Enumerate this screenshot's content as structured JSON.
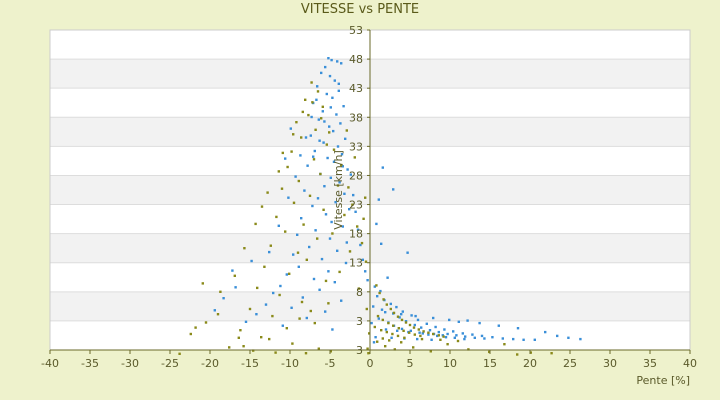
{
  "chart_data": {
    "type": "scatter",
    "title": "VITESSE vs PENTE",
    "xlabel": "Pente [%]",
    "ylabel": "Vitesse [km/h]",
    "xlim": [
      -40,
      40
    ],
    "ylim": [
      3,
      53
    ],
    "x_ticks": [
      -40,
      -35,
      -30,
      -25,
      -20,
      -15,
      -10,
      -5,
      0,
      5,
      10,
      15,
      20,
      25,
      30,
      35,
      40
    ],
    "y_tick_labels": [
      "53",
      "48",
      "43",
      "38",
      "33",
      "28",
      "23",
      "18",
      "13",
      "8",
      "3",
      "3"
    ],
    "grid": "horizontal bands",
    "series": [
      {
        "color": "#3a8fd8",
        "points": [
          [
            -5.2,
            48.6
          ],
          [
            -4.8,
            48.3
          ],
          [
            -4.1,
            48.1
          ],
          [
            -3.6,
            47.8
          ],
          [
            -5.6,
            47.2
          ],
          [
            -6.1,
            46.3
          ],
          [
            -5.0,
            45.8
          ],
          [
            -4.4,
            45.1
          ],
          [
            -6.6,
            44.2
          ],
          [
            -3.9,
            43.5
          ],
          [
            -5.4,
            43.0
          ],
          [
            -4.7,
            42.4
          ],
          [
            -7.1,
            41.6
          ],
          [
            -3.3,
            41.1
          ],
          [
            -5.9,
            40.3
          ],
          [
            -4.2,
            39.8
          ],
          [
            -6.4,
            39.0
          ],
          [
            -3.7,
            38.4
          ],
          [
            -5.1,
            37.9
          ],
          [
            -4.6,
            37.2
          ],
          [
            -7.4,
            36.5
          ],
          [
            -3.1,
            36.0
          ],
          [
            -5.8,
            35.4
          ],
          [
            -4.0,
            34.8
          ],
          [
            -6.9,
            34.1
          ],
          [
            -3.5,
            33.6
          ],
          [
            -5.3,
            33.0
          ],
          [
            -4.5,
            32.4
          ],
          [
            -7.8,
            31.8
          ],
          [
            -2.8,
            31.2
          ],
          [
            -6.2,
            30.5
          ],
          [
            -4.9,
            29.9
          ],
          [
            -3.8,
            29.2
          ],
          [
            -5.7,
            28.6
          ],
          [
            -8.2,
            27.9
          ],
          [
            -3.2,
            27.4
          ],
          [
            -6.5,
            26.7
          ],
          [
            -4.3,
            26.1
          ],
          [
            -7.2,
            25.5
          ],
          [
            -2.6,
            25.0
          ],
          [
            -5.5,
            24.2
          ],
          [
            -8.6,
            23.6
          ],
          [
            -4.8,
            23.0
          ],
          [
            -3.4,
            22.3
          ],
          [
            -6.8,
            21.7
          ],
          [
            -9.1,
            21.0
          ],
          [
            -5.0,
            20.4
          ],
          [
            -2.9,
            19.8
          ],
          [
            -7.6,
            19.1
          ],
          [
            -4.1,
            18.5
          ],
          [
            -9.6,
            17.9
          ],
          [
            -6.0,
            17.2
          ],
          [
            -3.0,
            16.6
          ],
          [
            -8.9,
            16.0
          ],
          [
            -5.2,
            15.3
          ],
          [
            -10.4,
            14.8
          ],
          [
            -7.0,
            14.1
          ],
          [
            -4.4,
            13.6
          ],
          [
            -11.2,
            13.0
          ],
          [
            -6.3,
            12.4
          ],
          [
            -12.1,
            11.9
          ],
          [
            -8.4,
            11.2
          ],
          [
            -3.6,
            10.7
          ],
          [
            -13.0,
            10.1
          ],
          [
            -9.8,
            9.6
          ],
          [
            -5.6,
            9.0
          ],
          [
            -14.2,
            8.6
          ],
          [
            -7.9,
            8.0
          ],
          [
            -15.5,
            7.4
          ],
          [
            -10.9,
            6.8
          ],
          [
            -4.7,
            6.2
          ],
          [
            -16.8,
            12.8
          ],
          [
            -18.3,
            11.1
          ],
          [
            -17.2,
            15.4
          ],
          [
            -19.4,
            9.2
          ],
          [
            -14.8,
            16.9
          ],
          [
            -12.6,
            18.3
          ],
          [
            -11.4,
            22.4
          ],
          [
            -10.2,
            26.8
          ],
          [
            -9.3,
            30.1
          ],
          [
            -8.7,
            33.4
          ],
          [
            -8.0,
            36.2
          ],
          [
            -7.3,
            39.4
          ],
          [
            -6.7,
            42.1
          ],
          [
            -9.9,
            37.6
          ],
          [
            -10.6,
            32.9
          ],
          [
            -2.4,
            30.4
          ],
          [
            -2.1,
            27.2
          ],
          [
            -1.8,
            24.6
          ],
          [
            -1.5,
            21.8
          ],
          [
            -1.2,
            19.4
          ],
          [
            -0.9,
            17.1
          ],
          [
            -0.6,
            15.3
          ],
          [
            -0.3,
            13.9
          ],
          [
            -3.9,
            44.6
          ],
          [
            -4.9,
            40.9
          ],
          [
            -5.7,
            38.7
          ],
          [
            -6.3,
            35.7
          ],
          [
            -7.1,
            33.2
          ],
          [
            -3.4,
            31.7
          ],
          [
            1.6,
            31.5
          ],
          [
            2.9,
            28.1
          ],
          [
            1.1,
            26.5
          ],
          [
            0.8,
            22.7
          ],
          [
            1.4,
            19.6
          ],
          [
            4.7,
            18.2
          ],
          [
            2.2,
            14.3
          ],
          [
            0.6,
            12.9
          ],
          [
            1.3,
            12.2
          ],
          [
            0.9,
            11.4
          ],
          [
            1.8,
            10.8
          ],
          [
            2.6,
            10.2
          ],
          [
            3.3,
            9.7
          ],
          [
            1.5,
            9.3
          ],
          [
            4.1,
            9.0
          ],
          [
            2.9,
            8.7
          ],
          [
            5.2,
            8.4
          ],
          [
            3.7,
            8.1
          ],
          [
            1.1,
            7.9
          ],
          [
            6.0,
            7.7
          ],
          [
            4.5,
            7.5
          ],
          [
            2.3,
            7.3
          ],
          [
            7.1,
            7.1
          ],
          [
            5.6,
            6.9
          ],
          [
            3.0,
            6.8
          ],
          [
            8.2,
            6.6
          ],
          [
            6.4,
            6.5
          ],
          [
            4.0,
            6.3
          ],
          [
            9.3,
            6.2
          ],
          [
            7.5,
            6.1
          ],
          [
            5.1,
            6.0
          ],
          [
            10.4,
            5.9
          ],
          [
            8.6,
            5.8
          ],
          [
            6.2,
            5.7
          ],
          [
            11.6,
            5.6
          ],
          [
            9.7,
            5.5
          ],
          [
            7.3,
            5.4
          ],
          [
            12.8,
            5.4
          ],
          [
            10.8,
            5.3
          ],
          [
            8.4,
            5.2
          ],
          [
            14.0,
            5.2
          ],
          [
            11.9,
            5.1
          ],
          [
            9.5,
            5.0
          ],
          [
            15.3,
            5.0
          ],
          [
            13.1,
            4.9
          ],
          [
            10.6,
            4.9
          ],
          [
            16.6,
            4.8
          ],
          [
            14.3,
            4.8
          ],
          [
            11.8,
            4.7
          ],
          [
            17.9,
            4.7
          ],
          [
            19.2,
            4.6
          ],
          [
            20.6,
            4.6
          ],
          [
            21.9,
            5.8
          ],
          [
            23.4,
            5.2
          ],
          [
            24.8,
            4.9
          ],
          [
            26.3,
            4.7
          ],
          [
            18.5,
            6.4
          ],
          [
            16.1,
            6.8
          ],
          [
            13.7,
            7.2
          ],
          [
            12.2,
            7.6
          ],
          [
            2.0,
            6.2
          ],
          [
            3.4,
            6.0
          ],
          [
            4.8,
            5.8
          ],
          [
            6.6,
            5.6
          ],
          [
            8.0,
            5.5
          ],
          [
            9.1,
            5.3
          ],
          [
            0.7,
            5.0
          ],
          [
            2.7,
            4.9
          ],
          [
            4.3,
            4.8
          ],
          [
            5.9,
            4.7
          ],
          [
            7.7,
            4.6
          ],
          [
            1.9,
            8.9
          ],
          [
            3.9,
            8.6
          ],
          [
            5.7,
            8.3
          ],
          [
            7.9,
            8.0
          ],
          [
            9.9,
            7.7
          ],
          [
            11.1,
            7.4
          ],
          [
            0.4,
            9.8
          ],
          [
            0.2,
            7.2
          ],
          [
            0.5,
            4.2
          ]
        ]
      },
      {
        "color": "#8a8a1a",
        "points": [
          [
            -7.3,
            44.8
          ],
          [
            -6.5,
            43.4
          ],
          [
            -8.1,
            42.1
          ],
          [
            -5.9,
            41.0
          ],
          [
            -7.7,
            39.7
          ],
          [
            -9.2,
            38.6
          ],
          [
            -6.8,
            37.4
          ],
          [
            -8.6,
            36.2
          ],
          [
            -5.4,
            35.1
          ],
          [
            -9.8,
            34.0
          ],
          [
            -7.0,
            32.8
          ],
          [
            -10.3,
            31.6
          ],
          [
            -6.2,
            30.5
          ],
          [
            -8.9,
            29.4
          ],
          [
            -11.0,
            28.2
          ],
          [
            -7.5,
            27.1
          ],
          [
            -9.5,
            26.0
          ],
          [
            -5.8,
            24.9
          ],
          [
            -11.7,
            23.8
          ],
          [
            -8.3,
            22.6
          ],
          [
            -10.6,
            21.5
          ],
          [
            -6.6,
            20.4
          ],
          [
            -12.4,
            19.3
          ],
          [
            -9.0,
            18.2
          ],
          [
            -7.9,
            17.1
          ],
          [
            -13.2,
            16.0
          ],
          [
            -10.1,
            14.9
          ],
          [
            -5.5,
            13.8
          ],
          [
            -14.1,
            12.7
          ],
          [
            -11.3,
            11.6
          ],
          [
            -8.5,
            10.5
          ],
          [
            -15.0,
            9.4
          ],
          [
            -12.2,
            8.3
          ],
          [
            -6.9,
            7.2
          ],
          [
            -16.2,
            6.1
          ],
          [
            -13.6,
            5.0
          ],
          [
            -9.7,
            4.0
          ],
          [
            -17.6,
            3.4
          ],
          [
            -14.6,
            2.9
          ],
          [
            -11.8,
            2.6
          ],
          [
            -19.0,
            8.6
          ],
          [
            -20.5,
            7.3
          ],
          [
            -21.8,
            6.5
          ],
          [
            -22.4,
            5.5
          ],
          [
            -20.9,
            13.4
          ],
          [
            -18.7,
            12.1
          ],
          [
            -16.9,
            14.6
          ],
          [
            -15.7,
            18.9
          ],
          [
            -14.3,
            22.7
          ],
          [
            -13.5,
            25.4
          ],
          [
            -12.8,
            27.6
          ],
          [
            -11.4,
            30.9
          ],
          [
            -10.9,
            33.8
          ],
          [
            -9.6,
            36.7
          ],
          [
            -8.4,
            40.2
          ],
          [
            -7.2,
            41.7
          ],
          [
            -6.1,
            39.2
          ],
          [
            -5.1,
            37.0
          ],
          [
            -4.5,
            34.3
          ],
          [
            -3.6,
            31.9
          ],
          [
            -2.7,
            28.4
          ],
          [
            -2.2,
            25.7
          ],
          [
            -1.6,
            22.3
          ],
          [
            -1.0,
            19.7
          ],
          [
            -0.5,
            16.8
          ],
          [
            -4.0,
            28.7
          ],
          [
            -3.2,
            24.1
          ],
          [
            -4.7,
            21.2
          ],
          [
            -2.5,
            18.4
          ],
          [
            -3.8,
            15.2
          ],
          [
            -1.4,
            12.6
          ],
          [
            -5.2,
            10.3
          ],
          [
            -7.4,
            9.1
          ],
          [
            -8.8,
            7.9
          ],
          [
            -10.4,
            6.4
          ],
          [
            -12.6,
            4.7
          ],
          [
            -15.8,
            3.6
          ],
          [
            -23.8,
            2.4
          ],
          [
            -16.4,
            4.9
          ],
          [
            -6.4,
            3.2
          ],
          [
            -4.9,
            2.8
          ],
          [
            -8.0,
            2.5
          ],
          [
            -0.2,
            2.5
          ],
          [
            -0.3,
            3.2
          ],
          [
            -0.1,
            5.6
          ],
          [
            -0.4,
            9.4
          ],
          [
            -0.6,
            26.8
          ],
          [
            -0.8,
            23.5
          ],
          [
            -1.9,
            33.1
          ],
          [
            -2.9,
            37.3
          ],
          [
            0.8,
            13.1
          ],
          [
            1.2,
            11.9
          ],
          [
            1.7,
            10.9
          ],
          [
            2.1,
            10.1
          ],
          [
            2.6,
            9.4
          ],
          [
            3.0,
            8.8
          ],
          [
            3.5,
            8.2
          ],
          [
            4.0,
            7.7
          ],
          [
            4.5,
            7.3
          ],
          [
            5.0,
            6.9
          ],
          [
            5.5,
            6.5
          ],
          [
            6.1,
            6.2
          ],
          [
            6.7,
            5.9
          ],
          [
            7.3,
            5.7
          ],
          [
            7.9,
            5.5
          ],
          [
            8.6,
            5.3
          ],
          [
            9.2,
            5.1
          ],
          [
            1.0,
            8.3
          ],
          [
            1.6,
            7.7
          ],
          [
            2.3,
            7.2
          ],
          [
            2.9,
            6.8
          ],
          [
            3.6,
            6.4
          ],
          [
            4.2,
            6.0
          ],
          [
            4.9,
            5.7
          ],
          [
            5.6,
            5.4
          ],
          [
            6.3,
            5.2
          ],
          [
            0.6,
            6.6
          ],
          [
            1.4,
            6.1
          ],
          [
            2.1,
            5.8
          ],
          [
            2.8,
            5.5
          ],
          [
            3.5,
            5.2
          ],
          [
            4.3,
            4.9
          ],
          [
            1.9,
            3.6
          ],
          [
            3.1,
            3.1
          ],
          [
            5.4,
            3.4
          ],
          [
            7.6,
            2.8
          ],
          [
            9.7,
            3.9
          ],
          [
            12.3,
            3.1
          ],
          [
            14.9,
            2.7
          ],
          [
            18.4,
            2.3
          ],
          [
            20.1,
            2.6
          ],
          [
            22.7,
            2.5
          ],
          [
            16.8,
            3.9
          ],
          [
            11.0,
            4.4
          ],
          [
            8.8,
            4.6
          ],
          [
            6.5,
            4.7
          ],
          [
            0.9,
            4.3
          ],
          [
            1.6,
            4.8
          ],
          [
            2.4,
            4.5
          ],
          [
            3.9,
            4.2
          ]
        ]
      }
    ]
  }
}
